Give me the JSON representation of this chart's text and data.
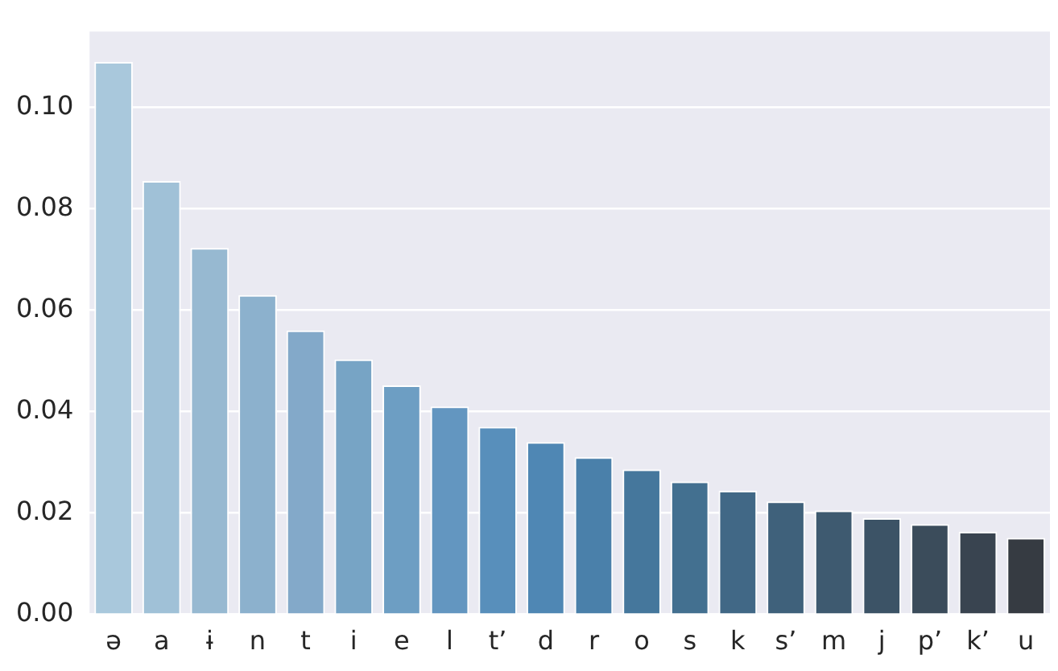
{
  "chart_data": {
    "type": "bar",
    "categories": [
      "ə",
      "a",
      "ɨ",
      "n",
      "t",
      "i",
      "e",
      "l",
      "t’",
      "d",
      "r",
      "o",
      "s",
      "k",
      "s’",
      "m",
      "j",
      "p’",
      "k’",
      "u"
    ],
    "values": [
      0.109,
      0.0855,
      0.0723,
      0.063,
      0.056,
      0.0503,
      0.0452,
      0.041,
      0.037,
      0.034,
      0.031,
      0.0286,
      0.0262,
      0.0244,
      0.0223,
      0.0205,
      0.019,
      0.0178,
      0.0163,
      0.0151
    ],
    "colors": [
      "#a9c8dc",
      "#a0c1d7",
      "#97b9d1",
      "#8cb1cd",
      "#83a9c9",
      "#77a4c5",
      "#6d9ec3",
      "#6396c0",
      "#588fbb",
      "#4f87b4",
      "#4a80aa",
      "#45779c",
      "#437090",
      "#416886",
      "#3f617b",
      "#3e5a70",
      "#3c5366",
      "#3b4c5b",
      "#394450",
      "#363b42"
    ],
    "ylim": [
      0,
      0.115
    ],
    "yticks": [
      {
        "value": 0,
        "label": "0.00"
      },
      {
        "value": 0.02,
        "label": "0.02"
      },
      {
        "value": 0.04,
        "label": "0.04"
      },
      {
        "value": 0.06,
        "label": "0.06"
      },
      {
        "value": 0.08,
        "label": "0.08"
      },
      {
        "value": 0.1,
        "label": "0.10"
      }
    ],
    "grid": "y"
  }
}
